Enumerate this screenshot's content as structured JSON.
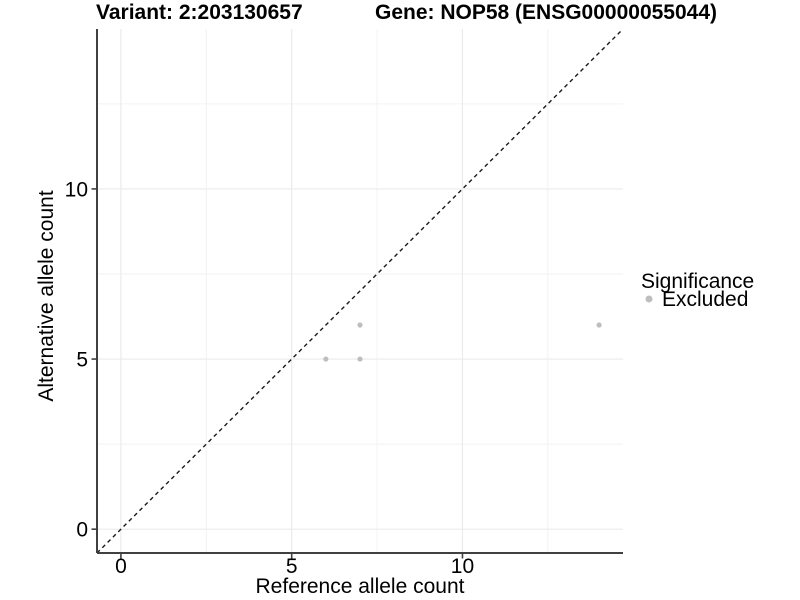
{
  "chart_data": {
    "type": "scatter",
    "title_left": "Variant: 2:203130657",
    "title_right": "Gene: NOP58 (ENSG00000055044)",
    "xlabel": "Reference allele count",
    "ylabel": "Alternative allele count",
    "xlim": [
      -0.7,
      14.7
    ],
    "ylim": [
      -0.7,
      14.7
    ],
    "x_ticks": [
      0,
      5,
      10
    ],
    "y_ticks": [
      0,
      5,
      10
    ],
    "x_minor_ticks": [
      2.5,
      7.5,
      12.5
    ],
    "y_minor_ticks": [
      2.5,
      7.5,
      12.5
    ],
    "grid": true,
    "reference_line": {
      "style": "dashed",
      "slope": 1,
      "intercept": 0,
      "color": "#1a1a1a"
    },
    "series": [
      {
        "name": "Excluded",
        "marker": "circle",
        "color": "#bebebe",
        "points": [
          [
            6,
            5
          ],
          [
            7,
            5
          ],
          [
            7,
            6
          ],
          [
            14,
            6
          ]
        ]
      }
    ],
    "legend": {
      "title": "Significance",
      "position": "right",
      "items": [
        {
          "label": "Excluded",
          "color": "#bebebe"
        }
      ]
    },
    "colors": {
      "background": "#ffffff",
      "grid_major": "#ebebeb",
      "grid_minor": "#f2f2f2",
      "axis_line": "#404040",
      "point": "#bebebe",
      "text": "#000000"
    }
  }
}
